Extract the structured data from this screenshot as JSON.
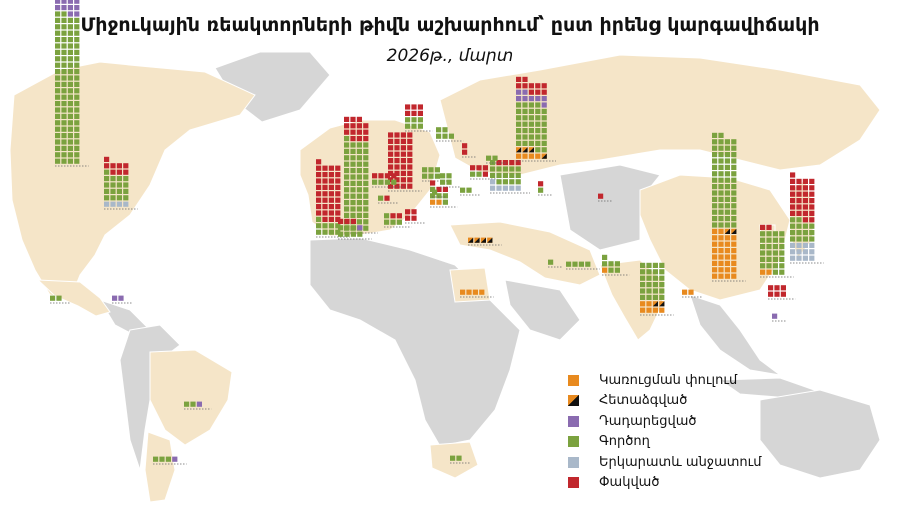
{
  "header": {
    "title": "Միջուկային ռեակտորների թիվն աշխարհում՝ ըստ իրենց կարգավիճակի",
    "subtitle": "2026թ., մարտ"
  },
  "colors": {
    "construction": "#e88a1f",
    "postponed": "#111111",
    "shutdown": "#8a6bb0",
    "operating": "#7ba23f",
    "long_term_outage": "#a9b8c9",
    "closed": "#c1272d",
    "land_highlight": "#f5e5c8",
    "land_other": "#d6d6d6"
  },
  "chart_data": {
    "type": "map-waffle",
    "unit": "one square = one reactor",
    "legend": [
      {
        "key": "construction",
        "label": "Կառուցման փուլում"
      },
      {
        "key": "postponed",
        "label": "Հետաձգված"
      },
      {
        "key": "shutdown",
        "label": "Դադարեցված"
      },
      {
        "key": "operating",
        "label": "Գործող"
      },
      {
        "key": "long_term_outage",
        "label": "Երկարատև անջատում"
      },
      {
        "key": "closed",
        "label": "Փակված"
      }
    ],
    "series": [
      {
        "region": "United States",
        "operating": 94,
        "closed": 41,
        "shutdown": 22,
        "construction": 0,
        "postponed": 0,
        "long_term_outage": 0
      },
      {
        "region": "Canada",
        "operating": 17,
        "closed": 8,
        "shutdown": 0,
        "construction": 0,
        "postponed": 0,
        "long_term_outage": 4
      },
      {
        "region": "Mexico",
        "operating": 2,
        "closed": 0,
        "shutdown": 0,
        "construction": 0,
        "postponed": 0,
        "long_term_outage": 0
      },
      {
        "region": "Cuba",
        "operating": 0,
        "closed": 0,
        "shutdown": 2,
        "construction": 0,
        "postponed": 0,
        "long_term_outage": 0
      },
      {
        "region": "Brazil",
        "operating": 2,
        "closed": 0,
        "shutdown": 1,
        "construction": 0,
        "postponed": 0,
        "long_term_outage": 0
      },
      {
        "region": "Argentina",
        "operating": 3,
        "closed": 0,
        "shutdown": 1,
        "construction": 0,
        "postponed": 0,
        "long_term_outage": 0
      },
      {
        "region": "South Africa",
        "operating": 2,
        "closed": 0,
        "shutdown": 0,
        "construction": 0,
        "postponed": 0,
        "long_term_outage": 0
      },
      {
        "region": "United Kingdom",
        "operating": 9,
        "closed": 36,
        "shutdown": 0,
        "construction": 0,
        "postponed": 0,
        "long_term_outage": 0
      },
      {
        "region": "France",
        "operating": 57,
        "closed": 14,
        "shutdown": 0,
        "construction": 0,
        "postponed": 0,
        "long_term_outage": 0
      },
      {
        "region": "Germany",
        "operating": 0,
        "closed": 36,
        "shutdown": 0,
        "construction": 0,
        "postponed": 0,
        "long_term_outage": 0
      },
      {
        "region": "Spain",
        "operating": 7,
        "closed": 3,
        "shutdown": 1,
        "construction": 0,
        "postponed": 0,
        "long_term_outage": 0
      },
      {
        "region": "Italy",
        "operating": 0,
        "closed": 4,
        "shutdown": 0,
        "construction": 0,
        "postponed": 0,
        "long_term_outage": 0
      },
      {
        "region": "Sweden",
        "operating": 6,
        "closed": 6,
        "shutdown": 0,
        "construction": 0,
        "postponed": 0,
        "long_term_outage": 0
      },
      {
        "region": "Finland",
        "operating": 5,
        "closed": 0,
        "shutdown": 0,
        "construction": 0,
        "postponed": 0,
        "long_term_outage": 0
      },
      {
        "region": "Belgium",
        "operating": 4,
        "closed": 4,
        "shutdown": 0,
        "construction": 0,
        "postponed": 0,
        "long_term_outage": 0
      },
      {
        "region": "Netherlands",
        "operating": 1,
        "closed": 1,
        "shutdown": 0,
        "construction": 0,
        "postponed": 0,
        "long_term_outage": 0
      },
      {
        "region": "Switzerland",
        "operating": 4,
        "closed": 2,
        "shutdown": 0,
        "construction": 0,
        "postponed": 0,
        "long_term_outage": 0
      },
      {
        "region": "Czechia",
        "operating": 6,
        "closed": 0,
        "shutdown": 0,
        "construction": 0,
        "postponed": 0,
        "long_term_outage": 0
      },
      {
        "region": "Slovakia",
        "operating": 5,
        "closed": 3,
        "shutdown": 0,
        "construction": 2,
        "postponed": 0,
        "long_term_outage": 0
      },
      {
        "region": "Hungary",
        "operating": 4,
        "closed": 0,
        "shutdown": 0,
        "construction": 0,
        "postponed": 0,
        "long_term_outage": 0
      },
      {
        "region": "Slovenia",
        "operating": 1,
        "closed": 0,
        "shutdown": 0,
        "construction": 0,
        "postponed": 0,
        "long_term_outage": 0
      },
      {
        "region": "Romania",
        "operating": 2,
        "closed": 0,
        "shutdown": 0,
        "construction": 0,
        "postponed": 0,
        "long_term_outage": 0
      },
      {
        "region": "Bulgaria",
        "operating": 2,
        "closed": 4,
        "shutdown": 0,
        "construction": 0,
        "postponed": 0,
        "long_term_outage": 0
      },
      {
        "region": "Ukraine",
        "operating": 15,
        "closed": 4,
        "shutdown": 0,
        "construction": 0,
        "postponed": 0,
        "long_term_outage": 6
      },
      {
        "region": "Lithuania",
        "operating": 0,
        "closed": 2,
        "shutdown": 0,
        "construction": 0,
        "postponed": 0,
        "long_term_outage": 0
      },
      {
        "region": "Belarus",
        "operating": 2,
        "closed": 0,
        "shutdown": 0,
        "construction": 0,
        "postponed": 0,
        "long_term_outage": 0
      },
      {
        "region": "Russia",
        "operating": 36,
        "closed": 10,
        "shutdown": 8,
        "construction": 4,
        "postponed": 4,
        "long_term_outage": 0
      },
      {
        "region": "Armenia",
        "operating": 1,
        "closed": 1,
        "shutdown": 0,
        "construction": 0,
        "postponed": 0,
        "long_term_outage": 0
      },
      {
        "region": "Turkey",
        "operating": 0,
        "closed": 0,
        "shutdown": 0,
        "construction": 0,
        "postponed": 4,
        "long_term_outage": 0
      },
      {
        "region": "Kazakhstan",
        "operating": 0,
        "closed": 1,
        "shutdown": 0,
        "construction": 0,
        "postponed": 0,
        "long_term_outage": 0
      },
      {
        "region": "Iran",
        "operating": 1,
        "closed": 0,
        "shutdown": 0,
        "construction": 0,
        "postponed": 0,
        "long_term_outage": 0
      },
      {
        "region": "UAE",
        "operating": 4,
        "closed": 0,
        "shutdown": 0,
        "construction": 0,
        "postponed": 0,
        "long_term_outage": 0
      },
      {
        "region": "Egypt",
        "operating": 0,
        "closed": 0,
        "shutdown": 0,
        "construction": 4,
        "postponed": 0,
        "long_term_outage": 0
      },
      {
        "region": "Pakistan",
        "operating": 6,
        "closed": 0,
        "shutdown": 0,
        "construction": 1,
        "postponed": 0,
        "long_term_outage": 0
      },
      {
        "region": "India",
        "operating": 24,
        "closed": 0,
        "shutdown": 0,
        "construction": 6,
        "postponed": 2,
        "long_term_outage": 0
      },
      {
        "region": "Bangladesh",
        "operating": 0,
        "closed": 0,
        "shutdown": 0,
        "construction": 2,
        "postponed": 0,
        "long_term_outage": 0
      },
      {
        "region": "China",
        "operating": 58,
        "closed": 0,
        "shutdown": 0,
        "construction": 30,
        "postponed": 2,
        "long_term_outage": 0
      },
      {
        "region": "Taiwan",
        "operating": 0,
        "closed": 6,
        "shutdown": 0,
        "construction": 0,
        "postponed": 0,
        "long_term_outage": 0
      },
      {
        "region": "South Korea",
        "operating": 26,
        "closed": 2,
        "shutdown": 0,
        "construction": 2,
        "postponed": 0,
        "long_term_outage": 0
      },
      {
        "region": "Japan",
        "operating": 14,
        "closed": 27,
        "shutdown": 0,
        "construction": 0,
        "postponed": 0,
        "long_term_outage": 12
      },
      {
        "region": "Philippines",
        "operating": 0,
        "closed": 0,
        "shutdown": 1,
        "construction": 0,
        "postponed": 0,
        "long_term_outage": 0
      }
    ]
  }
}
